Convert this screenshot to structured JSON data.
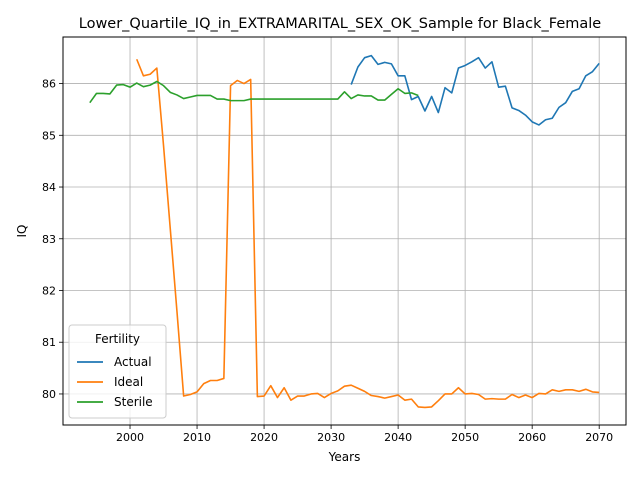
{
  "chart_data": {
    "type": "line",
    "title": "Lower_Quartile_IQ_in_EXTRAMARITAL_SEX_OK_Sample for Black_Female",
    "xlabel": "Years",
    "ylabel": "IQ",
    "xlim": [
      1990,
      2074
    ],
    "ylim": [
      79.4,
      86.9
    ],
    "xticks": [
      2000,
      2010,
      2020,
      2030,
      2040,
      2050,
      2060,
      2070
    ],
    "yticks": [
      80,
      81,
      82,
      83,
      84,
      85,
      86
    ],
    "grid": true,
    "legend": {
      "title": "Fertility",
      "placement": "lower-left"
    },
    "series": [
      {
        "name": "Actual",
        "color": "#1f77b4",
        "x": [
          2033,
          2034,
          2035,
          2036,
          2037,
          2038,
          2039,
          2040,
          2041,
          2042,
          2043,
          2044,
          2045,
          2046,
          2047,
          2048,
          2049,
          2050,
          2051,
          2052,
          2053,
          2054,
          2055,
          2056,
          2057,
          2058,
          2059,
          2060,
          2061,
          2062,
          2063,
          2064,
          2065,
          2066,
          2067,
          2068,
          2069,
          2070
        ],
        "y": [
          85.98,
          86.32,
          86.5,
          86.54,
          86.37,
          86.41,
          86.38,
          86.15,
          86.15,
          85.69,
          85.75,
          85.47,
          85.75,
          85.44,
          85.92,
          85.82,
          86.3,
          86.35,
          86.42,
          86.5,
          86.3,
          86.42,
          85.93,
          85.95,
          85.53,
          85.48,
          85.39,
          85.26,
          85.2,
          85.3,
          85.33,
          85.54,
          85.63,
          85.85,
          85.9,
          86.15,
          86.23,
          86.39
        ]
      },
      {
        "name": "Ideal",
        "color": "#ff7f0e",
        "x": [
          2001,
          2002,
          2003,
          2004,
          2005,
          2006,
          2007,
          2008,
          2009,
          2010,
          2011,
          2012,
          2013,
          2014,
          2015,
          2016,
          2017,
          2018,
          2019,
          2020,
          2021,
          2022,
          2023,
          2024,
          2025,
          2026,
          2027,
          2028,
          2029,
          2030,
          2031,
          2032,
          2033,
          2034,
          2035,
          2036,
          2037,
          2038,
          2039,
          2040,
          2041,
          2042,
          2043,
          2044,
          2045,
          2046,
          2047,
          2048,
          2049,
          2050,
          2051,
          2052,
          2053,
          2054,
          2055,
          2056,
          2057,
          2058,
          2059,
          2060,
          2061,
          2062,
          2063,
          2064,
          2065,
          2066,
          2067,
          2068,
          2069,
          2070
        ],
        "y": [
          86.47,
          86.15,
          86.18,
          86.3,
          84.8,
          83.2,
          81.6,
          79.96,
          79.99,
          80.04,
          80.2,
          80.26,
          80.26,
          80.3,
          85.96,
          86.06,
          86.0,
          86.08,
          79.95,
          79.96,
          80.16,
          79.93,
          80.12,
          79.88,
          79.96,
          79.96,
          80.0,
          80.01,
          79.93,
          80.01,
          80.06,
          80.15,
          80.17,
          80.11,
          80.05,
          79.97,
          79.95,
          79.92,
          79.95,
          79.98,
          79.88,
          79.9,
          79.75,
          79.74,
          79.75,
          79.87,
          80.0,
          80.0,
          80.12,
          80.0,
          80.01,
          79.99,
          79.9,
          79.91,
          79.9,
          79.9,
          79.99,
          79.93,
          79.98,
          79.93,
          80.01,
          80.0,
          80.08,
          80.05,
          80.08,
          80.08,
          80.05,
          80.09,
          80.04,
          80.03
        ]
      },
      {
        "name": "Sterile",
        "color": "#2ca02c",
        "x": [
          1994,
          1995,
          1996,
          1997,
          1998,
          1999,
          2000,
          2001,
          2002,
          2003,
          2004,
          2005,
          2006,
          2007,
          2008,
          2009,
          2010,
          2011,
          2012,
          2013,
          2014,
          2015,
          2016,
          2017,
          2018,
          2019,
          2020,
          2021,
          2022,
          2023,
          2024,
          2025,
          2026,
          2027,
          2028,
          2029,
          2030,
          2031,
          2032,
          2033,
          2034,
          2035,
          2036,
          2037,
          2038,
          2039,
          2040,
          2041,
          2042,
          2043
        ],
        "y": [
          85.63,
          85.81,
          85.81,
          85.8,
          85.97,
          85.98,
          85.93,
          86.01,
          85.94,
          85.97,
          86.04,
          85.96,
          85.83,
          85.78,
          85.71,
          85.74,
          85.77,
          85.77,
          85.77,
          85.7,
          85.7,
          85.67,
          85.67,
          85.67,
          85.7,
          85.7,
          85.7,
          85.7,
          85.7,
          85.7,
          85.7,
          85.7,
          85.7,
          85.7,
          85.7,
          85.7,
          85.7,
          85.7,
          85.84,
          85.71,
          85.78,
          85.76,
          85.76,
          85.68,
          85.68,
          85.79,
          85.9,
          85.81,
          85.82,
          85.77
        ]
      }
    ]
  }
}
